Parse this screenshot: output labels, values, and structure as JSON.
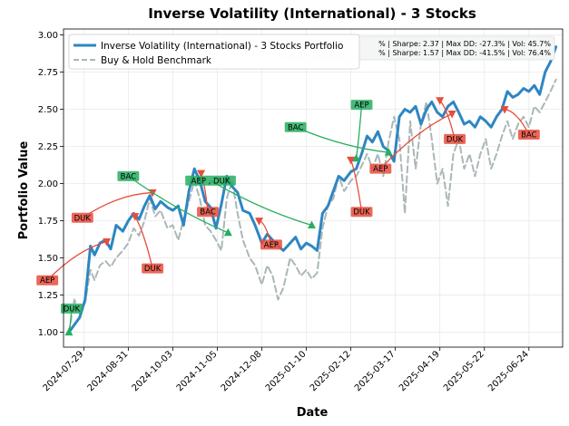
{
  "chart_data": {
    "type": "line",
    "title": "Inverse Volatility (International) - 3 Stocks",
    "xlabel": "Date",
    "ylabel": "Portfolio Value",
    "x_ticks": [
      "2024-07-29",
      "2024-08-31",
      "2024-10-03",
      "2024-11-05",
      "2024-12-08",
      "2025-01-10",
      "2025-02-12",
      "2025-03-17",
      "2025-04-19",
      "2025-05-22",
      "2025-06-24"
    ],
    "y_ticks": [
      "1.00",
      "1.25",
      "1.50",
      "1.75",
      "2.00",
      "2.25",
      "2.50",
      "2.75",
      "3.00"
    ],
    "xlim": [
      "2024-07-14",
      "2025-07-19"
    ],
    "ylim": [
      0.9,
      3.04
    ],
    "grid": true,
    "legend_position": "top-left",
    "series": [
      {
        "name": "Inverse Volatility (International) - 3 Stocks Portfolio",
        "color": "#2e86c1",
        "style": "solid",
        "points": [
          [
            "2024-07-18",
            1.0
          ],
          [
            "2024-07-22",
            1.05
          ],
          [
            "2024-07-26",
            1.1
          ],
          [
            "2024-07-30",
            1.22
          ],
          [
            "2024-08-03",
            1.58
          ],
          [
            "2024-08-06",
            1.52
          ],
          [
            "2024-08-10",
            1.6
          ],
          [
            "2024-08-14",
            1.62
          ],
          [
            "2024-08-18",
            1.56
          ],
          [
            "2024-08-22",
            1.72
          ],
          [
            "2024-08-27",
            1.68
          ],
          [
            "2024-08-31",
            1.75
          ],
          [
            "2024-09-04",
            1.8
          ],
          [
            "2024-09-08",
            1.76
          ],
          [
            "2024-09-12",
            1.85
          ],
          [
            "2024-09-16",
            1.92
          ],
          [
            "2024-09-20",
            1.83
          ],
          [
            "2024-09-24",
            1.88
          ],
          [
            "2024-09-29",
            1.84
          ],
          [
            "2024-10-03",
            1.82
          ],
          [
            "2024-10-07",
            1.85
          ],
          [
            "2024-10-11",
            1.72
          ],
          [
            "2024-10-15",
            1.95
          ],
          [
            "2024-10-19",
            2.1
          ],
          [
            "2024-10-23",
            2.02
          ],
          [
            "2024-10-27",
            1.88
          ],
          [
            "2024-10-31",
            1.84
          ],
          [
            "2024-11-04",
            1.7
          ],
          [
            "2024-11-08",
            1.86
          ],
          [
            "2024-11-12",
            2.05
          ],
          [
            "2024-11-16",
            1.98
          ],
          [
            "2024-11-20",
            1.94
          ],
          [
            "2024-11-24",
            1.82
          ],
          [
            "2024-11-29",
            1.8
          ],
          [
            "2024-12-03",
            1.72
          ],
          [
            "2024-12-08",
            1.6
          ],
          [
            "2024-12-12",
            1.66
          ],
          [
            "2024-12-16",
            1.62
          ],
          [
            "2024-12-20",
            1.58
          ],
          [
            "2024-12-24",
            1.55
          ],
          [
            "2024-12-29",
            1.6
          ],
          [
            "2025-01-02",
            1.64
          ],
          [
            "2025-01-06",
            1.56
          ],
          [
            "2025-01-10",
            1.6
          ],
          [
            "2025-01-14",
            1.58
          ],
          [
            "2025-01-18",
            1.55
          ],
          [
            "2025-01-22",
            1.8
          ],
          [
            "2025-01-26",
            1.85
          ],
          [
            "2025-01-30",
            1.95
          ],
          [
            "2025-02-03",
            2.05
          ],
          [
            "2025-02-07",
            2.02
          ],
          [
            "2025-02-12",
            2.08
          ],
          [
            "2025-02-16",
            2.1
          ],
          [
            "2025-02-20",
            2.2
          ],
          [
            "2025-02-24",
            2.32
          ],
          [
            "2025-02-28",
            2.28
          ],
          [
            "2025-03-04",
            2.35
          ],
          [
            "2025-03-08",
            2.25
          ],
          [
            "2025-03-12",
            2.22
          ],
          [
            "2025-03-16",
            2.15
          ],
          [
            "2025-03-20",
            2.45
          ],
          [
            "2025-03-24",
            2.5
          ],
          [
            "2025-03-28",
            2.48
          ],
          [
            "2025-04-01",
            2.52
          ],
          [
            "2025-04-05",
            2.4
          ],
          [
            "2025-04-09",
            2.5
          ],
          [
            "2025-04-13",
            2.55
          ],
          [
            "2025-04-17",
            2.48
          ],
          [
            "2025-04-21",
            2.45
          ],
          [
            "2025-04-25",
            2.52
          ],
          [
            "2025-04-29",
            2.55
          ],
          [
            "2025-05-03",
            2.48
          ],
          [
            "2025-05-07",
            2.4
          ],
          [
            "2025-05-11",
            2.42
          ],
          [
            "2025-05-15",
            2.38
          ],
          [
            "2025-05-19",
            2.45
          ],
          [
            "2025-05-23",
            2.42
          ],
          [
            "2025-05-27",
            2.38
          ],
          [
            "2025-05-31",
            2.45
          ],
          [
            "2025-06-04",
            2.5
          ],
          [
            "2025-06-08",
            2.62
          ],
          [
            "2025-06-12",
            2.58
          ],
          [
            "2025-06-16",
            2.6
          ],
          [
            "2025-06-20",
            2.64
          ],
          [
            "2025-06-24",
            2.62
          ],
          [
            "2025-06-28",
            2.66
          ],
          [
            "2025-07-02",
            2.6
          ],
          [
            "2025-07-06",
            2.75
          ],
          [
            "2025-07-10",
            2.82
          ],
          [
            "2025-07-14",
            2.92
          ]
        ]
      },
      {
        "name": "Buy & Hold Benchmark",
        "color": "#aab7b8",
        "style": "dashed",
        "points": [
          [
            "2024-07-18",
            1.0
          ],
          [
            "2024-07-22",
            1.22
          ],
          [
            "2024-07-26",
            1.12
          ],
          [
            "2024-07-30",
            1.2
          ],
          [
            "2024-08-03",
            1.42
          ],
          [
            "2024-08-06",
            1.35
          ],
          [
            "2024-08-10",
            1.45
          ],
          [
            "2024-08-14",
            1.48
          ],
          [
            "2024-08-18",
            1.44
          ],
          [
            "2024-08-22",
            1.5
          ],
          [
            "2024-08-27",
            1.55
          ],
          [
            "2024-08-31",
            1.6
          ],
          [
            "2024-09-04",
            1.7
          ],
          [
            "2024-09-08",
            1.65
          ],
          [
            "2024-09-12",
            1.75
          ],
          [
            "2024-09-16",
            1.9
          ],
          [
            "2024-09-20",
            1.78
          ],
          [
            "2024-09-24",
            1.82
          ],
          [
            "2024-09-29",
            1.7
          ],
          [
            "2024-10-03",
            1.72
          ],
          [
            "2024-10-07",
            1.62
          ],
          [
            "2024-10-11",
            1.76
          ],
          [
            "2024-10-15",
            1.88
          ],
          [
            "2024-10-19",
            2.02
          ],
          [
            "2024-10-23",
            1.9
          ],
          [
            "2024-10-27",
            1.72
          ],
          [
            "2024-10-31",
            1.68
          ],
          [
            "2024-11-04",
            1.62
          ],
          [
            "2024-11-08",
            1.55
          ],
          [
            "2024-11-12",
            1.9
          ],
          [
            "2024-11-16",
            2.02
          ],
          [
            "2024-11-20",
            1.8
          ],
          [
            "2024-11-24",
            1.62
          ],
          [
            "2024-11-29",
            1.5
          ],
          [
            "2024-12-03",
            1.45
          ],
          [
            "2024-12-08",
            1.32
          ],
          [
            "2024-12-12",
            1.45
          ],
          [
            "2024-12-16",
            1.38
          ],
          [
            "2024-12-20",
            1.22
          ],
          [
            "2024-12-24",
            1.3
          ],
          [
            "2024-12-29",
            1.5
          ],
          [
            "2025-01-02",
            1.45
          ],
          [
            "2025-01-06",
            1.38
          ],
          [
            "2025-01-10",
            1.42
          ],
          [
            "2025-01-14",
            1.36
          ],
          [
            "2025-01-18",
            1.4
          ],
          [
            "2025-01-22",
            1.7
          ],
          [
            "2025-01-26",
            1.85
          ],
          [
            "2025-01-30",
            1.9
          ],
          [
            "2025-02-03",
            2.05
          ],
          [
            "2025-02-07",
            1.95
          ],
          [
            "2025-02-12",
            2.02
          ],
          [
            "2025-02-16",
            2.05
          ],
          [
            "2025-02-20",
            2.12
          ],
          [
            "2025-02-24",
            2.2
          ],
          [
            "2025-02-28",
            2.1
          ],
          [
            "2025-03-04",
            2.2
          ],
          [
            "2025-03-08",
            2.05
          ],
          [
            "2025-03-12",
            2.28
          ],
          [
            "2025-03-16",
            2.45
          ],
          [
            "2025-03-20",
            2.3
          ],
          [
            "2025-03-24",
            1.8
          ],
          [
            "2025-03-28",
            2.42
          ],
          [
            "2025-04-01",
            2.1
          ],
          [
            "2025-04-05",
            2.4
          ],
          [
            "2025-04-09",
            2.55
          ],
          [
            "2025-04-13",
            2.3
          ],
          [
            "2025-04-17",
            2.0
          ],
          [
            "2025-04-21",
            2.1
          ],
          [
            "2025-04-25",
            1.85
          ],
          [
            "2025-04-29",
            2.2
          ],
          [
            "2025-05-03",
            2.3
          ],
          [
            "2025-05-07",
            2.1
          ],
          [
            "2025-05-11",
            2.2
          ],
          [
            "2025-05-15",
            2.05
          ],
          [
            "2025-05-19",
            2.2
          ],
          [
            "2025-05-23",
            2.3
          ],
          [
            "2025-05-27",
            2.1
          ],
          [
            "2025-05-31",
            2.2
          ],
          [
            "2025-06-04",
            2.32
          ],
          [
            "2025-06-08",
            2.42
          ],
          [
            "2025-06-12",
            2.3
          ],
          [
            "2025-06-16",
            2.4
          ],
          [
            "2025-06-20",
            2.45
          ],
          [
            "2025-06-24",
            2.38
          ],
          [
            "2025-06-28",
            2.52
          ],
          [
            "2025-07-02",
            2.48
          ],
          [
            "2025-07-06",
            2.55
          ],
          [
            "2025-07-10",
            2.62
          ],
          [
            "2025-07-14",
            2.7
          ]
        ]
      }
    ],
    "stats_lines": [
      "% | Sharpe: 2.37 | Max DD: -27.3% | Vol: 45.7%",
      "% | Sharpe: 1.57 | Max DD: -41.5% | Vol: 76.4%"
    ],
    "trades": [
      {
        "side": "buy",
        "label": "DUK",
        "date": "2024-07-18",
        "value": 1.0,
        "label_date": "2024-07-20",
        "label_value": 1.16
      },
      {
        "side": "sell",
        "label": "AEP",
        "date": "2024-08-15",
        "value": 1.61,
        "label_date": "2024-07-02",
        "label_value": 1.35
      },
      {
        "side": "sell",
        "label": "DUK",
        "date": "2024-09-18",
        "value": 1.94,
        "label_date": "2024-07-28",
        "label_value": 1.77
      },
      {
        "side": "sell",
        "label": "DUK",
        "date": "2024-09-05",
        "value": 1.78,
        "label_date": "2024-09-18",
        "label_value": 1.43
      },
      {
        "side": "buy",
        "label": "BAC",
        "date": "2024-11-13",
        "value": 1.67,
        "label_date": "2024-08-31",
        "label_value": 2.05
      },
      {
        "side": "sell",
        "label": "BAC",
        "date": "2024-10-24",
        "value": 2.07,
        "label_date": "2024-10-29",
        "label_value": 1.81
      },
      {
        "side": "buy",
        "label": "AEP , DUK",
        "date": "2025-01-14",
        "value": 1.72,
        "label_date": "2024-10-31",
        "label_value": 2.02
      },
      {
        "side": "sell",
        "label": "AEP",
        "date": "2024-12-06",
        "value": 1.75,
        "label_date": "2024-12-15",
        "label_value": 1.59
      },
      {
        "side": "buy",
        "label": "BAC",
        "date": "2025-03-12",
        "value": 2.21,
        "label_date": "2025-01-02",
        "label_value": 2.38
      },
      {
        "side": "buy",
        "label": "AEP",
        "date": "2025-02-16",
        "value": 2.17,
        "label_date": "2025-02-20",
        "label_value": 2.53
      },
      {
        "side": "sell",
        "label": "DUK",
        "date": "2025-02-12",
        "value": 2.16,
        "label_date": "2025-02-20",
        "label_value": 1.81
      },
      {
        "side": "sell",
        "label": "AEP",
        "date": "2025-04-28",
        "value": 2.47,
        "label_date": "2025-03-06",
        "label_value": 2.1
      },
      {
        "side": "sell",
        "label": "DUK",
        "date": "2025-04-19",
        "value": 2.56,
        "label_date": "2025-04-30",
        "label_value": 2.3
      },
      {
        "side": "sell",
        "label": "BAC",
        "date": "2025-06-06",
        "value": 2.5,
        "label_date": "2025-06-24",
        "label_value": 2.33
      }
    ],
    "colors": {
      "buy": "#27ae60",
      "sell": "#e74c3c",
      "portfolio": "#2e86c1",
      "benchmark": "#aab7b8"
    }
  }
}
